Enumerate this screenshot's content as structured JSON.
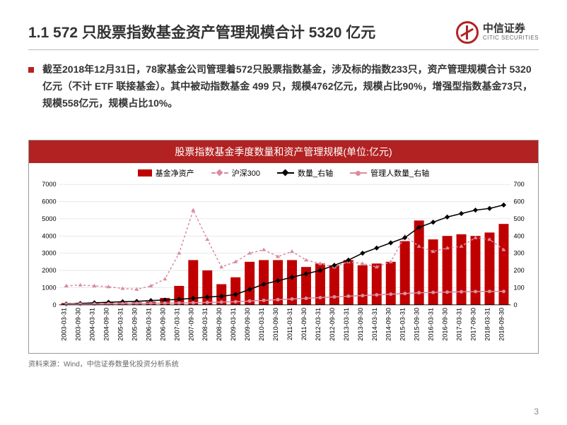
{
  "header": {
    "title": "1.1 572 只股票指数基金资产管理规模合计 5320 亿元",
    "logo_cn": "中信证券",
    "logo_en": "CITIC SECURITIES"
  },
  "body": {
    "text": "截至2018年12月31日，78家基金公司管理着572只股票指数基金，涉及标的指数233只，资产管理规模合计 5320 亿元（不计 ETF 联接基金）。其中被动指数基金 499 只，规模4762亿元，规模占比90%，增强型指数基金73只，规模558亿元，规模占比10%。"
  },
  "chart": {
    "title": "股票指数基金季度数量和资产管理规模(单位:亿元)",
    "legend": [
      {
        "label": "基金净资产",
        "type": "bar",
        "color": "#c00000"
      },
      {
        "label": "沪深300",
        "type": "line",
        "color": "#d98ca0",
        "marker": "triangle",
        "dash": "3,3"
      },
      {
        "label": "数量_右轴",
        "type": "line",
        "color": "#000000",
        "marker": "diamond",
        "dash": "none"
      },
      {
        "label": "管理人数量_右轴",
        "type": "line",
        "color": "#d98ca0",
        "marker": "circle",
        "dash": "none"
      }
    ],
    "x_categories": [
      "2003-03-31",
      "2003-09-30",
      "2004-03-31",
      "2004-09-30",
      "2005-03-31",
      "2005-09-30",
      "2006-03-31",
      "2006-09-30",
      "2007-03-31",
      "2007-09-30",
      "2008-03-31",
      "2008-09-30",
      "2009-03-31",
      "2009-09-30",
      "2010-03-31",
      "2010-09-30",
      "2011-03-31",
      "2011-09-30",
      "2012-03-31",
      "2012-09-30",
      "2013-03-31",
      "2013-09-30",
      "2014-03-31",
      "2014-09-30",
      "2015-03-31",
      "2015-09-30",
      "2016-03-31",
      "2016-09-30",
      "2017-03-31",
      "2017-09-30",
      "2018-03-31",
      "2018-09-30"
    ],
    "left_axis": {
      "min": 0,
      "max": 7000,
      "step": 1000,
      "label_fontsize": 10
    },
    "right_axis": {
      "min": 0,
      "max": 700,
      "step": 100,
      "label_fontsize": 10
    },
    "series_bar_nav": [
      100,
      120,
      130,
      140,
      130,
      140,
      180,
      400,
      1100,
      2600,
      2000,
      1200,
      1600,
      2500,
      2600,
      2600,
      2600,
      2200,
      2400,
      2300,
      2600,
      2300,
      2400,
      2500,
      3700,
      4900,
      3800,
      4000,
      4100,
      4000,
      4200,
      4700
    ],
    "series_hs300": [
      1100,
      1150,
      1100,
      1050,
      950,
      900,
      1100,
      1500,
      3000,
      5500,
      3800,
      2200,
      2500,
      3000,
      3200,
      2800,
      3100,
      2600,
      2400,
      2200,
      2500,
      2400,
      2200,
      2500,
      4000,
      3400,
      3100,
      3300,
      3400,
      3900,
      3800,
      3200
    ],
    "series_count_right": [
      5,
      8,
      12,
      15,
      18,
      20,
      25,
      28,
      32,
      38,
      45,
      50,
      60,
      90,
      120,
      140,
      160,
      180,
      200,
      230,
      260,
      300,
      330,
      360,
      390,
      450,
      480,
      510,
      530,
      550,
      560,
      580
    ],
    "series_mgr_right": [
      3,
      4,
      5,
      6,
      7,
      8,
      9,
      10,
      11,
      12,
      14,
      16,
      18,
      22,
      26,
      30,
      34,
      38,
      42,
      46,
      50,
      54,
      58,
      62,
      66,
      70,
      72,
      74,
      76,
      77,
      78,
      78
    ],
    "colors": {
      "bar": "#c00000",
      "hs300_line": "#d98ca0",
      "count_line": "#000000",
      "mgr_line": "#d98ca0",
      "grid": "#d0d0d0",
      "axis_text": "#000000",
      "bg": "#ffffff"
    },
    "font_sizes": {
      "axis": 9,
      "legend": 11,
      "title": 14
    }
  },
  "source": "资料来源：Wind，中信证券数量化投资分析系统",
  "page": "3"
}
